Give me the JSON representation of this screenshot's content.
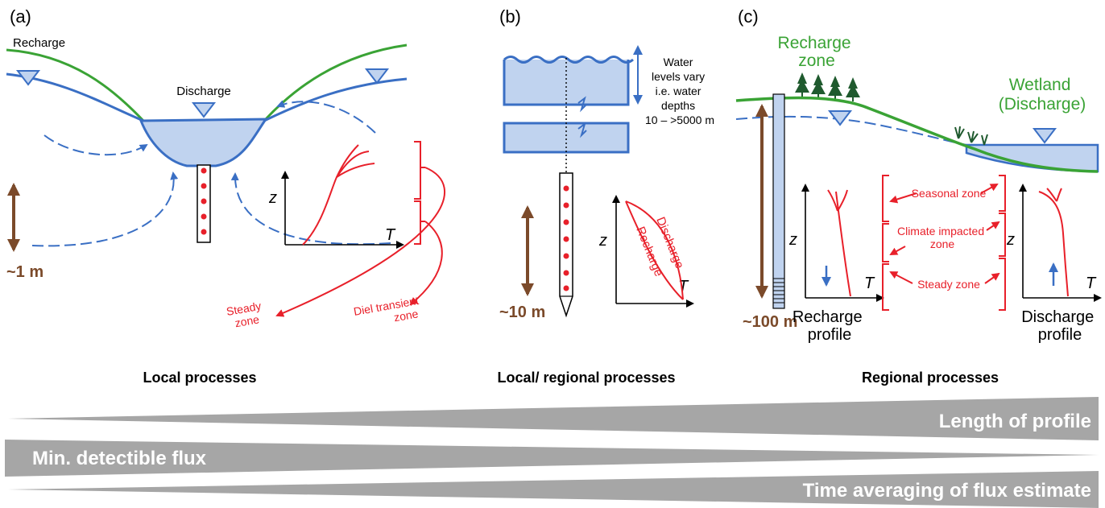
{
  "panels": {
    "a": {
      "letter": "(a)",
      "recharge": "Recharge",
      "discharge": "Discharge",
      "depth": "~1 m",
      "z_axis": "z",
      "t_axis": "T",
      "steady_zone": [
        "Steady",
        "zone"
      ],
      "diel_zone": [
        "Diel transient",
        "zone"
      ],
      "caption": "Local processes"
    },
    "b": {
      "letter": "(b)",
      "water_note": [
        "Water",
        "levels vary",
        "i.e. water",
        "depths",
        "10 – >5000 m"
      ],
      "depth": "~10 m",
      "z_axis": "z",
      "t_axis": "T",
      "discharge": "Discharge",
      "recharge": "Recharge",
      "caption": "Local/ regional processes"
    },
    "c": {
      "letter": "(c)",
      "recharge_zone": [
        "Recharge",
        "zone"
      ],
      "wetland": [
        "Wetland",
        "(Discharge)"
      ],
      "depth": "~100 m",
      "z_axis": "z",
      "t_axis": "T",
      "seasonal_zone": "Seasonal zone",
      "climate_zone": [
        "Climate impacted",
        "zone"
      ],
      "steady_zone": "Steady zone",
      "recharge_profile": [
        "Recharge",
        "profile"
      ],
      "discharge_profile": [
        "Discharge",
        "profile"
      ],
      "caption": "Regional processes"
    }
  },
  "wedges": {
    "length": "Length of profile",
    "flux": "Min. detectible flux",
    "time": "Time averaging of flux estimate"
  },
  "colors": {
    "green": "#3aa335",
    "blue": "#3a6fc4",
    "water": "#c0d3ef",
    "red": "#e8202a",
    "brown": "#7b4a2a",
    "gray": "#a6a6a6",
    "tree": "#1f5a2e"
  }
}
